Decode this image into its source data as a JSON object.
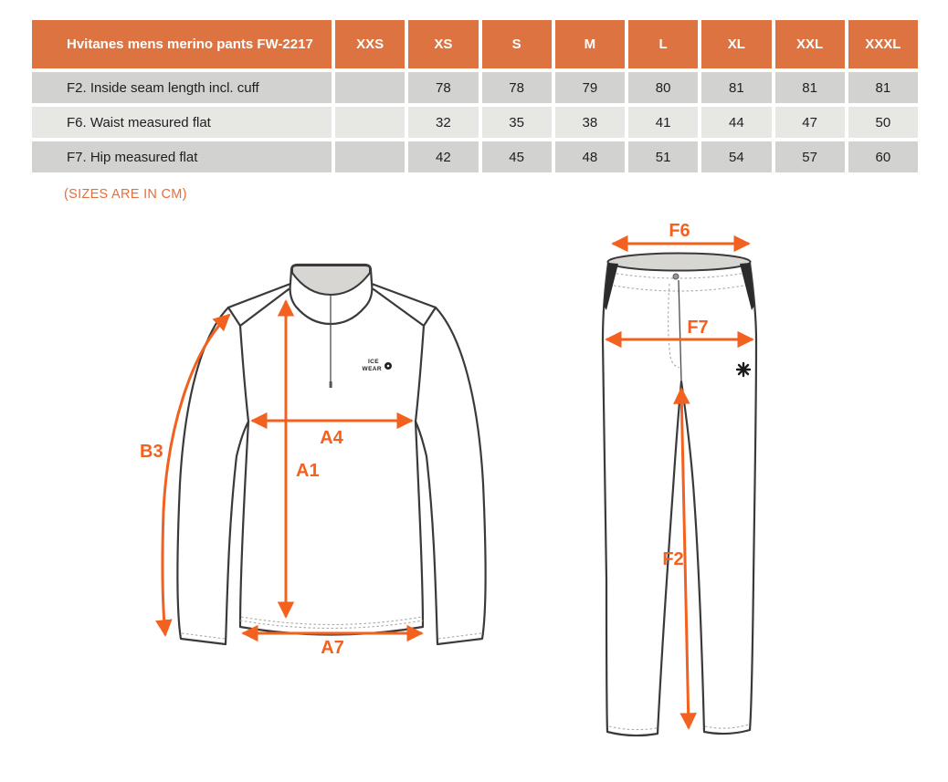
{
  "colors": {
    "header_bg": "#DD7340",
    "arrow": "#F2611F",
    "note": "#E2703C",
    "row_dark": "#D2D2D0",
    "row_light": "#E7E7E4"
  },
  "size_table": {
    "title": "Hvitanes mens merino pants FW-2217",
    "columns": [
      "XXS",
      "XS",
      "S",
      "M",
      "L",
      "XL",
      "XXL",
      "XXXL"
    ],
    "rows": [
      {
        "label": "F2. Inside seam length incl. cuff",
        "values": [
          "",
          "78",
          "78",
          "79",
          "80",
          "81",
          "81",
          "81"
        ]
      },
      {
        "label": "F6. Waist measured flat",
        "values": [
          "",
          "32",
          "35",
          "38",
          "41",
          "44",
          "47",
          "50"
        ]
      },
      {
        "label": "F7. Hip measured flat",
        "values": [
          "",
          "42",
          "45",
          "48",
          "51",
          "54",
          "57",
          "60"
        ]
      }
    ]
  },
  "note": "(SIZES ARE IN CM)",
  "shirt_diagram": {
    "labels": {
      "b3": "B3",
      "a4": "A4",
      "a1": "A1",
      "a7": "A7"
    },
    "logo_line1": "ICE",
    "logo_line2": "WEAR"
  },
  "pants_diagram": {
    "labels": {
      "f6": "F6",
      "f7": "F7",
      "f2": "F2"
    }
  }
}
